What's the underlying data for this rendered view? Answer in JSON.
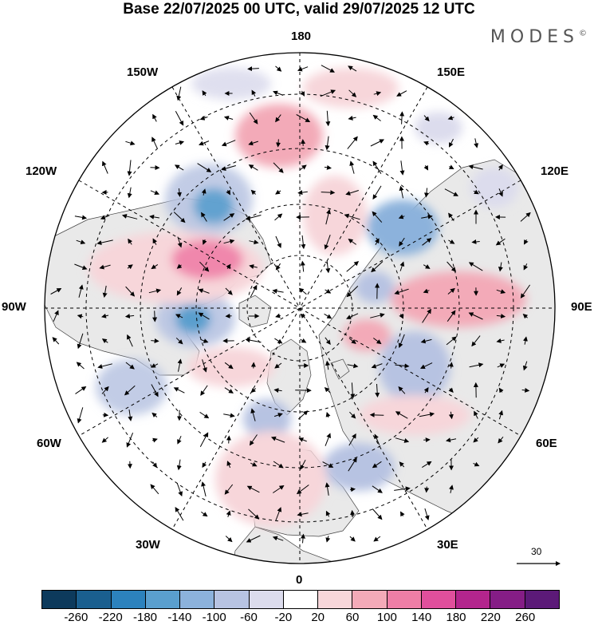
{
  "title": "Base 22/07/2025 00 UTC, valid 29/07/2025 12 UTC",
  "brand": "MODES",
  "brand_mark": "©",
  "longitude_labels": {
    "lon_180": "180",
    "lon_150w": "150W",
    "lon_150e": "150E",
    "lon_120w": "120W",
    "lon_120e": "120E",
    "lon_90w": "90W",
    "lon_90e": "90E",
    "lon_60w": "60W",
    "lon_60e": "60E",
    "lon_30w": "30W",
    "lon_30e": "30E",
    "lon_0": "0"
  },
  "vector_reference": {
    "label": "30"
  },
  "colorbar": {
    "ticks": [
      "-260",
      "-220",
      "-180",
      "-140",
      "-100",
      "-60",
      "-20",
      "20",
      "60",
      "100",
      "140",
      "180",
      "220",
      "260"
    ],
    "colors": [
      "#0d3a5c",
      "#1a5f8f",
      "#2c82bd",
      "#5a9fce",
      "#8cb2dc",
      "#b7c3e2",
      "#dcdced",
      "#ffffff",
      "#f7d6da",
      "#f3aab8",
      "#ee7ea6",
      "#e04f9c",
      "#b3258d",
      "#851d86",
      "#5c1a78"
    ]
  },
  "colors": {
    "land": "#e9e9e9",
    "ocean": "#ffffff",
    "grid": "#000000"
  }
}
